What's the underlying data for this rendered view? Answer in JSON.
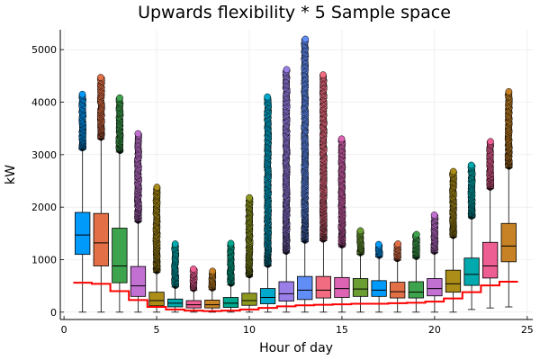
{
  "chart_data": {
    "type": "box",
    "title": "Upwards flexibility * 5 Sample space",
    "xlabel": "Hour of day",
    "ylabel": "kW",
    "xlim": [
      -0.2,
      25.3
    ],
    "ylim": [
      -140,
      5380
    ],
    "xticks": [
      0,
      5,
      10,
      15,
      20,
      25
    ],
    "yticks": [
      0,
      1000,
      2000,
      3000,
      4000,
      5000
    ],
    "grid": true,
    "legend": "none",
    "boxes": [
      {
        "hour": 1,
        "min": 0,
        "q1": 1100,
        "median": 1470,
        "q3": 1900,
        "whisker_high": 3100,
        "outlier_max": 4150,
        "color": "#009AFA"
      },
      {
        "hour": 2,
        "min": 0,
        "q1": 880,
        "median": 1320,
        "q3": 1880,
        "whisker_high": 3300,
        "outlier_max": 4470,
        "color": "#E26F46"
      },
      {
        "hour": 3,
        "min": 0,
        "q1": 560,
        "median": 880,
        "q3": 1600,
        "whisker_high": 3050,
        "outlier_max": 4080,
        "color": "#3DA44D"
      },
      {
        "hour": 4,
        "min": 0,
        "q1": 300,
        "median": 500,
        "q3": 870,
        "whisker_high": 1720,
        "outlier_max": 3400,
        "color": "#C271D2"
      },
      {
        "hour": 5,
        "min": 0,
        "q1": 120,
        "median": 220,
        "q3": 380,
        "whisker_high": 760,
        "outlier_max": 2380,
        "color": "#AC8D18"
      },
      {
        "hour": 6,
        "min": 0,
        "q1": 100,
        "median": 170,
        "q3": 250,
        "whisker_high": 480,
        "outlier_max": 1300,
        "color": "#00A9AD"
      },
      {
        "hour": 7,
        "min": 0,
        "q1": 80,
        "median": 140,
        "q3": 220,
        "whisker_high": 420,
        "outlier_max": 820,
        "color": "#ED5E93"
      },
      {
        "hour": 8,
        "min": 0,
        "q1": 80,
        "median": 140,
        "q3": 230,
        "whisker_high": 430,
        "outlier_max": 780,
        "color": "#C68225"
      },
      {
        "hour": 9,
        "min": 0,
        "q1": 90,
        "median": 170,
        "q3": 280,
        "whisker_high": 520,
        "outlier_max": 1310,
        "color": "#00A98D"
      },
      {
        "hour": 10,
        "min": 0,
        "q1": 130,
        "median": 220,
        "q3": 360,
        "whisker_high": 680,
        "outlier_max": 2180,
        "color": "#8E971E"
      },
      {
        "hour": 11,
        "min": 0,
        "q1": 160,
        "median": 280,
        "q3": 450,
        "whisker_high": 880,
        "outlier_max": 4100,
        "color": "#00A8CB"
      },
      {
        "hour": 12,
        "min": 0,
        "q1": 210,
        "median": 350,
        "q3": 580,
        "whisker_high": 1130,
        "outlier_max": 4620,
        "color": "#9B7FE9"
      },
      {
        "hour": 13,
        "min": 0,
        "q1": 240,
        "median": 420,
        "q3": 680,
        "whisker_high": 1340,
        "outlier_max": 5200,
        "color": "#618DF6"
      },
      {
        "hour": 14,
        "min": 0,
        "q1": 270,
        "median": 420,
        "q3": 680,
        "whisker_high": 1360,
        "outlier_max": 4520,
        "color": "#F16C80"
      },
      {
        "hour": 15,
        "min": 0,
        "q1": 280,
        "median": 450,
        "q3": 660,
        "whisker_high": 1250,
        "outlier_max": 3300,
        "color": "#DD64B5"
      },
      {
        "hour": 16,
        "min": 0,
        "q1": 300,
        "median": 440,
        "q3": 640,
        "whisker_high": 1100,
        "outlier_max": 1550,
        "color": "#6B9E32"
      },
      {
        "hour": 17,
        "min": 0,
        "q1": 300,
        "median": 420,
        "q3": 600,
        "whisker_high": 1050,
        "outlier_max": 1290,
        "color": "#009AFA"
      },
      {
        "hour": 18,
        "min": 0,
        "q1": 270,
        "median": 390,
        "q3": 570,
        "whisker_high": 990,
        "outlier_max": 1300,
        "color": "#E26F46"
      },
      {
        "hour": 19,
        "min": 0,
        "q1": 270,
        "median": 380,
        "q3": 580,
        "whisker_high": 1030,
        "outlier_max": 1480,
        "color": "#3DA44D"
      },
      {
        "hour": 20,
        "min": 0,
        "q1": 310,
        "median": 450,
        "q3": 640,
        "whisker_high": 1130,
        "outlier_max": 1850,
        "color": "#C271D2"
      },
      {
        "hour": 21,
        "min": 0,
        "q1": 380,
        "median": 540,
        "q3": 800,
        "whisker_high": 1430,
        "outlier_max": 2680,
        "color": "#AC8D18"
      },
      {
        "hour": 22,
        "min": 50,
        "q1": 510,
        "median": 720,
        "q3": 1030,
        "whisker_high": 1800,
        "outlier_max": 2800,
        "color": "#00A9AD"
      },
      {
        "hour": 23,
        "min": 80,
        "q1": 650,
        "median": 880,
        "q3": 1330,
        "whisker_high": 2350,
        "outlier_max": 3250,
        "color": "#ED5E93"
      },
      {
        "hour": 24,
        "min": 100,
        "q1": 960,
        "median": 1260,
        "q3": 1690,
        "whisker_high": 2750,
        "outlier_max": 4200,
        "color": "#C68225"
      }
    ],
    "lower_line": {
      "color": "#FF0000",
      "points": [
        [
          0.5,
          560
        ],
        [
          1.5,
          560
        ],
        [
          1.5,
          540
        ],
        [
          2.5,
          540
        ],
        [
          2.5,
          400
        ],
        [
          3.5,
          400
        ],
        [
          3.5,
          230
        ],
        [
          4.5,
          230
        ],
        [
          4.5,
          100
        ],
        [
          5.5,
          100
        ],
        [
          5.5,
          50
        ],
        [
          6.5,
          50
        ],
        [
          6.5,
          30
        ],
        [
          7.5,
          30
        ],
        [
          7.5,
          20
        ],
        [
          8.5,
          20
        ],
        [
          8.5,
          30
        ],
        [
          9.5,
          30
        ],
        [
          9.5,
          50
        ],
        [
          10.5,
          50
        ],
        [
          10.5,
          80
        ],
        [
          11.5,
          80
        ],
        [
          11.5,
          110
        ],
        [
          12.5,
          110
        ],
        [
          12.5,
          130
        ],
        [
          13.5,
          130
        ],
        [
          13.5,
          140
        ],
        [
          14.5,
          140
        ],
        [
          14.5,
          150
        ],
        [
          15.5,
          150
        ],
        [
          15.5,
          160
        ],
        [
          16.5,
          160
        ],
        [
          16.5,
          160
        ],
        [
          17.5,
          160
        ],
        [
          17.5,
          170
        ],
        [
          18.5,
          170
        ],
        [
          18.5,
          180
        ],
        [
          19.5,
          180
        ],
        [
          19.5,
          200
        ],
        [
          20.5,
          200
        ],
        [
          20.5,
          260
        ],
        [
          21.5,
          260
        ],
        [
          21.5,
          380
        ],
        [
          22.5,
          380
        ],
        [
          22.5,
          510
        ],
        [
          23.5,
          510
        ],
        [
          23.5,
          580
        ],
        [
          24.5,
          580
        ]
      ]
    }
  }
}
